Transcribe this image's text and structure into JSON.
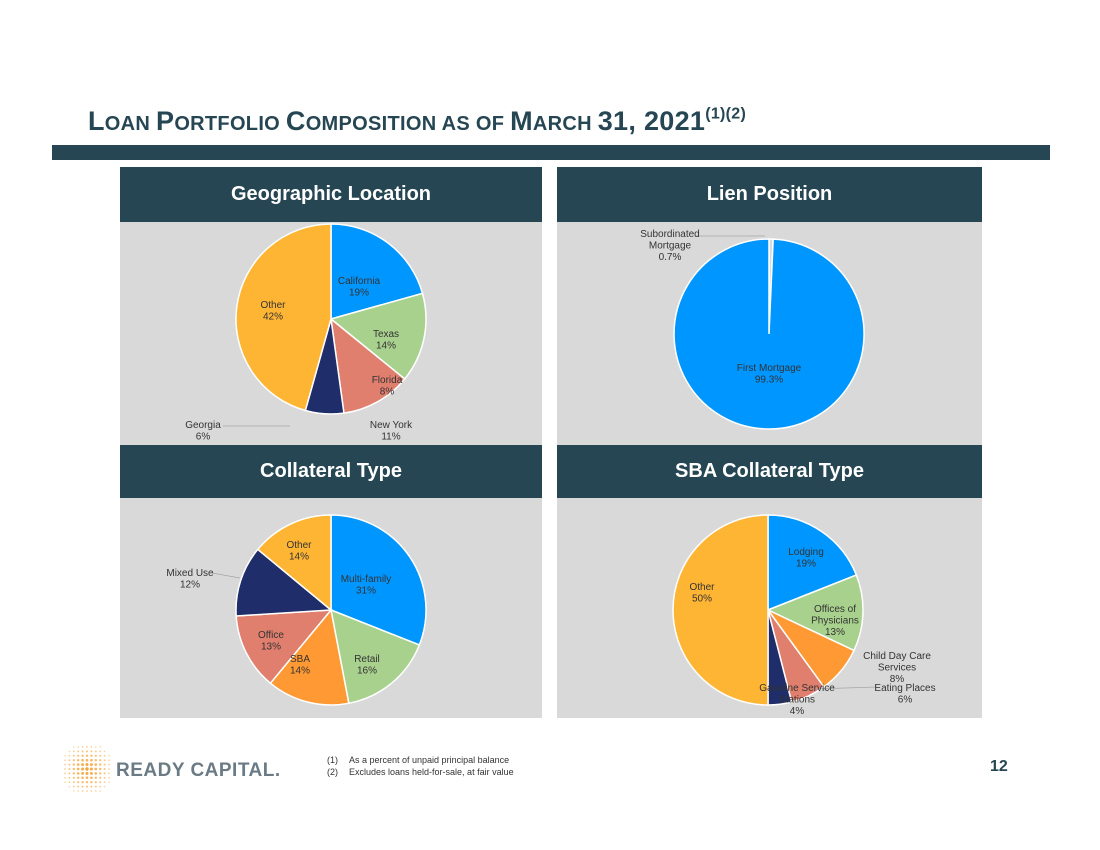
{
  "title": {
    "parts": [
      {
        "t": "L",
        "big": true
      },
      {
        "t": "OAN ",
        "big": false
      },
      {
        "t": "P",
        "big": true
      },
      {
        "t": "ORTFOLIO ",
        "big": false
      },
      {
        "t": "C",
        "big": true
      },
      {
        "t": "OMPOSITION AS OF ",
        "big": false
      },
      {
        "t": "M",
        "big": true
      },
      {
        "t": "ARCH ",
        "big": false
      },
      {
        "t": "31, 2021",
        "big": true
      }
    ],
    "superscript": "(1)(2)"
  },
  "panels": {
    "geo": {
      "header": "Geographic Location"
    },
    "lien": {
      "header": "Lien Position"
    },
    "collateral": {
      "header": "Collateral Type"
    },
    "sba": {
      "header": "SBA Collateral Type"
    }
  },
  "footnotes": [
    {
      "num": "(1)",
      "text": "As a percent of unpaid principal balance"
    },
    {
      "num": "(2)",
      "text": "Excludes loans held-for-sale, at fair value"
    }
  ],
  "page_number": "12",
  "logo": {
    "text": "READY CAPITAL."
  },
  "colors": {
    "navy": "#264653",
    "panel_bg": "#d9d9d9",
    "logo_orange": "#f4a53a"
  },
  "chart_data": [
    {
      "id": "geo",
      "type": "pie",
      "slices": [
        {
          "label": "California",
          "value_label": "19%",
          "value": 19,
          "color": "#0096ff"
        },
        {
          "label": "Texas",
          "value_label": "14%",
          "value": 14,
          "color": "#a9d18e"
        },
        {
          "label": "New York",
          "value_label": "11%",
          "value": 11,
          "color": "#e07f6e"
        },
        {
          "label": "Georgia",
          "value_label": "6%",
          "value": 6,
          "color": "#1f2d6b"
        },
        {
          "label": "Other",
          "value_label": "42%",
          "value": 42,
          "color": "#ffb534"
        },
        {
          "label": "Florida",
          "value_label": "8%",
          "value": 8,
          "color": "#ff9933",
          "note": "printed label only"
        }
      ]
    },
    {
      "id": "lien",
      "type": "pie",
      "slices": [
        {
          "label": "First Mortgage",
          "value_label": "99.3%",
          "value": 99.3,
          "color": "#0096ff"
        },
        {
          "label": "Subordinated Mortgage",
          "value_label": "0.7%",
          "value": 0.7,
          "color": "#d9d9d9"
        }
      ]
    },
    {
      "id": "collateral",
      "type": "pie",
      "slices": [
        {
          "label": "Multi-family",
          "value_label": "31%",
          "value": 31,
          "color": "#0096ff"
        },
        {
          "label": "Retail",
          "value_label": "16%",
          "value": 16,
          "color": "#a9d18e"
        },
        {
          "label": "SBA",
          "value_label": "14%",
          "value": 14,
          "color": "#ff9933"
        },
        {
          "label": "Office",
          "value_label": "13%",
          "value": 13,
          "color": "#e07f6e"
        },
        {
          "label": "Mixed Use",
          "value_label": "12%",
          "value": 12,
          "color": "#1f2d6b"
        },
        {
          "label": "Other",
          "value_label": "14%",
          "value": 14,
          "color": "#ffb534"
        }
      ]
    },
    {
      "id": "sba",
      "type": "pie",
      "slices": [
        {
          "label": "Lodging",
          "value_label": "19%",
          "value": 19,
          "color": "#0096ff"
        },
        {
          "label": "Offices of Physicians",
          "value_label": "13%",
          "value": 13,
          "color": "#a9d18e"
        },
        {
          "label": "Child Day Care Services",
          "value_label": "8%",
          "value": 8,
          "color": "#ff9933"
        },
        {
          "label": "Eating Places",
          "value_label": "6%",
          "value": 6,
          "color": "#e07f6e"
        },
        {
          "label": "Gasoline Service Stations",
          "value_label": "4%",
          "value": 4,
          "color": "#1f2d6b"
        },
        {
          "label": "Other",
          "value_label": "50%",
          "value": 50,
          "color": "#ffb534"
        }
      ]
    }
  ]
}
